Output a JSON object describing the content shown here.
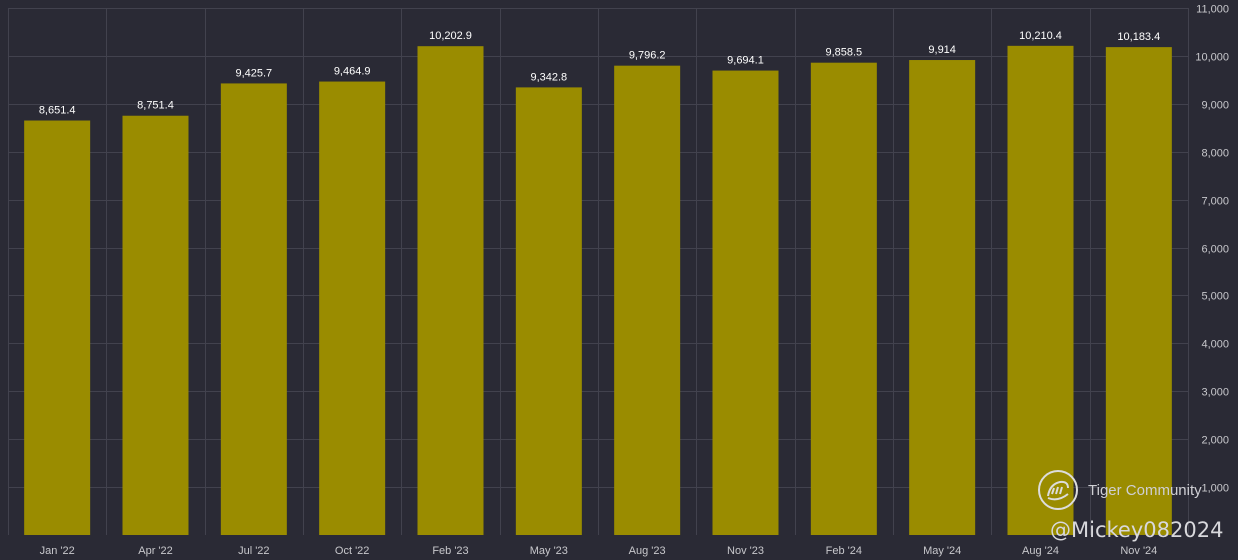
{
  "chart_data": {
    "type": "bar",
    "categories": [
      "Jan '22",
      "Apr '22",
      "Jul '22",
      "Oct '22",
      "Feb '23",
      "May '23",
      "Aug '23",
      "Nov '23",
      "Feb '24",
      "May '24",
      "Aug '24",
      "Nov '24"
    ],
    "values": [
      8651.4,
      8751.4,
      9425.7,
      9464.9,
      10202.9,
      9342.8,
      9796.2,
      9694.1,
      9858.5,
      9914,
      10210.4,
      10183.4
    ],
    "data_labels": [
      "8,651.4",
      "8,751.4",
      "9,425.7",
      "9,464.9",
      "10,202.9",
      "9,342.8",
      "9,796.2",
      "9,694.1",
      "9,858.5",
      "9,914",
      "10,210.4",
      "10,183.4"
    ],
    "y_ticks": [
      1000,
      2000,
      3000,
      4000,
      5000,
      6000,
      7000,
      8000,
      9000,
      10000,
      11000
    ],
    "y_tick_labels": [
      "1,000",
      "2,000",
      "3,000",
      "4,000",
      "5,000",
      "6,000",
      "7,000",
      "8,000",
      "9,000",
      "10,000",
      "11,000"
    ],
    "ylim": [
      0,
      11000
    ],
    "y_axis_position": "right",
    "grid": true,
    "title": "",
    "xlabel": "",
    "ylabel": "",
    "colors": {
      "bar": "#9a8c00",
      "background": "#2a2a35",
      "grid": "#42424e",
      "tick_text": "#c8c8cc",
      "data_label_text": "#ffffff"
    }
  },
  "watermark": {
    "brand": "Tiger Community",
    "handle": "@Mickey082024",
    "icon": "tiger-icon"
  }
}
